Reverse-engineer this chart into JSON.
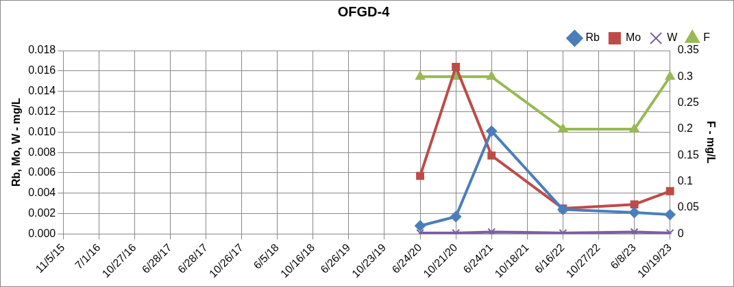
{
  "chart_data": {
    "type": "line",
    "title": "OFGD-4",
    "ylabel": "Rb, Mo, W - mg/L",
    "y2label": "F - mg/L",
    "categories": [
      "11/5/15",
      "7/1/16",
      "10/27/16",
      "6/28/17",
      "6/28/17",
      "10/26/17",
      "6/5/18",
      "10/16/18",
      "6/26/19",
      "10/23/19",
      "6/24/20",
      "10/21/20",
      "6/24/21",
      "10/18/21",
      "6/16/22",
      "10/27/22",
      "6/8/23",
      "10/19/23"
    ],
    "series": [
      {
        "name": "Rb",
        "color": "#4a7ebb",
        "marker": "diamond",
        "values": [
          null,
          null,
          null,
          null,
          null,
          null,
          null,
          null,
          null,
          null,
          0.0008,
          0.0017,
          0.0101,
          null,
          0.0024,
          null,
          0.0021,
          0.0019
        ]
      },
      {
        "name": "Mo",
        "color": "#be4b48",
        "marker": "square",
        "values": [
          null,
          null,
          null,
          null,
          null,
          null,
          null,
          null,
          null,
          null,
          0.0057,
          0.0164,
          0.0077,
          null,
          0.0025,
          null,
          0.0029,
          0.0042
        ]
      },
      {
        "name": "W",
        "color": "#7d5fa0",
        "marker": "cross",
        "values": [
          null,
          null,
          null,
          null,
          null,
          null,
          null,
          null,
          null,
          null,
          0.0001,
          0.0001,
          0.0002,
          null,
          0.0001,
          null,
          0.0002,
          0.0001
        ]
      },
      {
        "name": "F",
        "color": "#98b954",
        "marker": "triangle",
        "axis": "y2",
        "values": [
          null,
          null,
          null,
          null,
          null,
          null,
          null,
          null,
          null,
          null,
          0.3,
          0.3,
          0.3,
          null,
          0.2,
          null,
          0.2,
          0.3
        ]
      }
    ],
    "ylim": [
      0,
      0.018
    ],
    "yticks": [
      {
        "value": 0,
        "label": "0.000"
      },
      {
        "value": 0.002,
        "label": "0.002"
      },
      {
        "value": 0.004,
        "label": "0.004"
      },
      {
        "value": 0.006,
        "label": "0.006"
      },
      {
        "value": 0.008,
        "label": "0.008"
      },
      {
        "value": 0.01,
        "label": "0.010"
      },
      {
        "value": 0.012,
        "label": "0.012"
      },
      {
        "value": 0.014,
        "label": "0.014"
      },
      {
        "value": 0.016,
        "label": "0.016"
      },
      {
        "value": 0.018,
        "label": "0.018"
      }
    ],
    "y2lim": [
      0,
      0.35
    ],
    "y2ticks": [
      0,
      0.05,
      0.1,
      0.15,
      0.2,
      0.25,
      0.3,
      0.35
    ],
    "grid": true,
    "legend": "top right"
  }
}
